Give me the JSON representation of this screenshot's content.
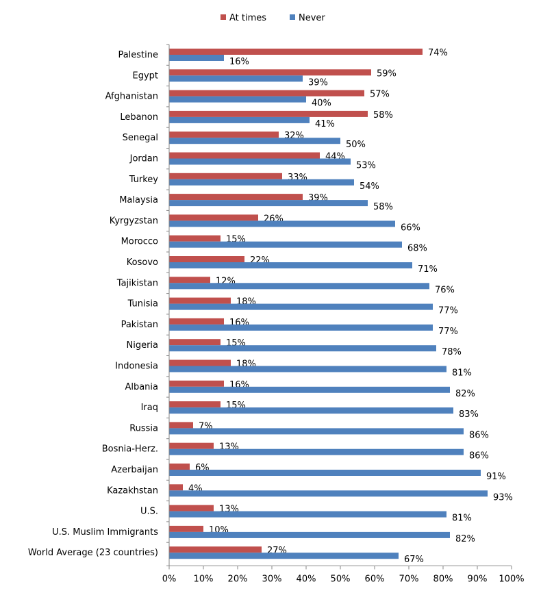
{
  "chart_data": {
    "type": "bar",
    "orientation": "horizontal",
    "categories": [
      "Palestine",
      "Egypt",
      "Afghanistan",
      "Lebanon",
      "Senegal",
      "Jordan",
      "Turkey",
      "Malaysia",
      "Kyrgyzstan",
      "Morocco",
      "Kosovo",
      "Tajikistan",
      "Tunisia",
      "Pakistan",
      "Nigeria",
      "Indonesia",
      "Albania",
      "Iraq",
      "Russia",
      "Bosnia-Herz.",
      "Azerbaijan",
      "Kazakhstan",
      "U.S.",
      "U.S. Muslim Immigrants",
      "World Average (23 countries)"
    ],
    "series": [
      {
        "name": "At times",
        "color": "#c0504d",
        "values": [
          74,
          59,
          57,
          58,
          32,
          44,
          33,
          39,
          26,
          15,
          22,
          12,
          18,
          16,
          15,
          18,
          16,
          15,
          7,
          13,
          6,
          4,
          13,
          10,
          27
        ]
      },
      {
        "name": "Never",
        "color": "#4f81bd",
        "values": [
          16,
          39,
          40,
          41,
          50,
          53,
          54,
          58,
          66,
          68,
          71,
          76,
          77,
          77,
          78,
          81,
          82,
          83,
          86,
          86,
          91,
          93,
          81,
          82,
          67
        ]
      }
    ],
    "value_suffix": "%",
    "xlim": [
      0,
      100
    ],
    "xticks": [
      "0%",
      "10%",
      "20%",
      "30%",
      "40%",
      "50%",
      "60%",
      "70%",
      "80%",
      "90%",
      "100%"
    ],
    "legend_position": "top",
    "grid": false
  }
}
